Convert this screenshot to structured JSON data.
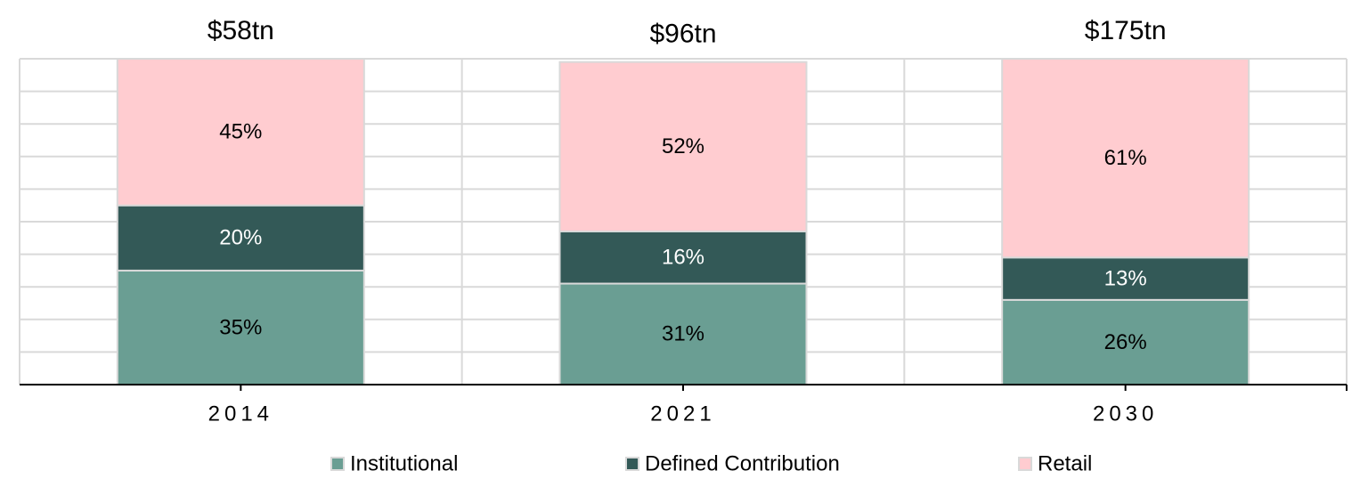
{
  "chart_data": {
    "type": "stacked_bar",
    "categories": [
      "2014",
      "2021",
      "2030"
    ],
    "annotations": [
      "$58tn",
      "$96tn",
      "$175tn"
    ],
    "series": [
      {
        "name": "Institutional",
        "color": "#6a9e93",
        "label_color": "#000000",
        "values": [
          35,
          31,
          26
        ],
        "value_labels": [
          "35%",
          "31%",
          "26%"
        ]
      },
      {
        "name": "Defined Contribution",
        "color": "#335957",
        "label_color": "#ffffff",
        "values": [
          20,
          16,
          13
        ],
        "value_labels": [
          "20%",
          "16%",
          "13%"
        ]
      },
      {
        "name": "Retail",
        "color": "#ffccd0",
        "label_color": "#000000",
        "values": [
          45,
          52,
          61
        ],
        "value_labels": [
          "45%",
          "52%",
          "61%"
        ]
      }
    ],
    "ylim": [
      0,
      100
    ],
    "yticks": [
      0,
      10,
      20,
      30,
      40,
      50,
      60,
      70,
      80,
      90,
      100
    ],
    "grid": true
  }
}
